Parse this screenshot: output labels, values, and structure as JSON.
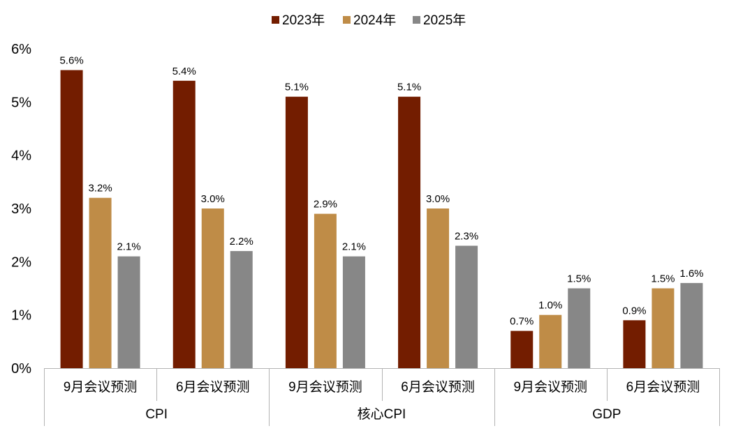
{
  "chart_data": {
    "type": "bar",
    "title": "",
    "xlabel": "",
    "ylabel": "",
    "ylim": [
      0,
      6
    ],
    "y_ticks": [
      "0%",
      "1%",
      "2%",
      "3%",
      "4%",
      "5%",
      "6%"
    ],
    "y_unit": "%",
    "grid": false,
    "legend_position": "top-center",
    "groups": [
      {
        "label": "CPI",
        "categories": [
          "9月会议预测",
          "6月会议预测"
        ]
      },
      {
        "label": "核心CPI",
        "categories": [
          "9月会议预测",
          "6月会议预测"
        ]
      },
      {
        "label": "GDP",
        "categories": [
          "9月会议预测",
          "6月会议预测"
        ]
      }
    ],
    "series": [
      {
        "name": "2023年",
        "color": "#731D00",
        "values": [
          5.6,
          5.4,
          5.1,
          5.1,
          0.7,
          0.9
        ]
      },
      {
        "name": "2024年",
        "color": "#BF8C47",
        "values": [
          3.2,
          3.0,
          2.9,
          3.0,
          1.0,
          1.5
        ]
      },
      {
        "name": "2025年",
        "color": "#878787",
        "values": [
          2.1,
          2.2,
          2.1,
          2.3,
          1.5,
          1.6
        ]
      }
    ]
  }
}
